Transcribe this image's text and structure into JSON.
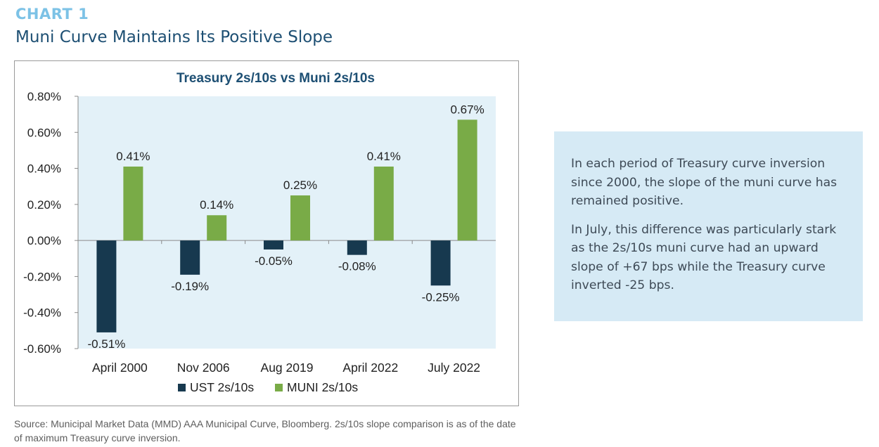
{
  "header": {
    "eyebrow": "CHART 1",
    "headline": "Muni Curve Maintains Its Positive Slope"
  },
  "callout": {
    "paragraph1": "In each period of Treasury curve inversion since 2000, the slope of the muni curve has remained positive.",
    "paragraph2": "In July, this difference was particularly stark as the 2s/10s muni curve had an upward slope of +67 bps while the Treasury curve inverted -25 bps."
  },
  "source": "Source: Municipal Market Data (MMD) AAA Municipal Curve, Bloomberg. 2s/10s slope comparison is as of the date of maximum Treasury curve inversion.",
  "colors": {
    "ust": "#17394f",
    "muni": "#79ab47",
    "plot_bg": "#e3f1f8",
    "title": "#1d4f73"
  },
  "chart_data": {
    "type": "bar",
    "title": "Treasury 2s/10s vs Muni 2s/10s",
    "categories": [
      "April 2000",
      "Nov 2006",
      "Aug 2019",
      "April 2022",
      "July 2022"
    ],
    "series": [
      {
        "name": "UST 2s/10s",
        "values": [
          -0.51,
          -0.19,
          -0.05,
          -0.08,
          -0.25
        ],
        "labels": [
          "-0.51%",
          "-0.19%",
          "-0.05%",
          "-0.08%",
          "-0.25%"
        ]
      },
      {
        "name": "MUNI 2s/10s",
        "values": [
          0.41,
          0.14,
          0.25,
          0.41,
          0.67
        ],
        "labels": [
          "0.41%",
          "0.14%",
          "0.25%",
          "0.41%",
          "0.67%"
        ]
      }
    ],
    "yticks": [
      -0.6,
      -0.4,
      -0.2,
      0.0,
      0.2,
      0.4,
      0.6,
      0.8
    ],
    "ytick_labels": [
      "-0.60%",
      "-0.40%",
      "-0.20%",
      "0.00%",
      "0.20%",
      "0.40%",
      "0.60%",
      "0.80%"
    ],
    "ylim": [
      -0.6,
      0.8
    ],
    "grid": false,
    "legend_position": "bottom"
  }
}
